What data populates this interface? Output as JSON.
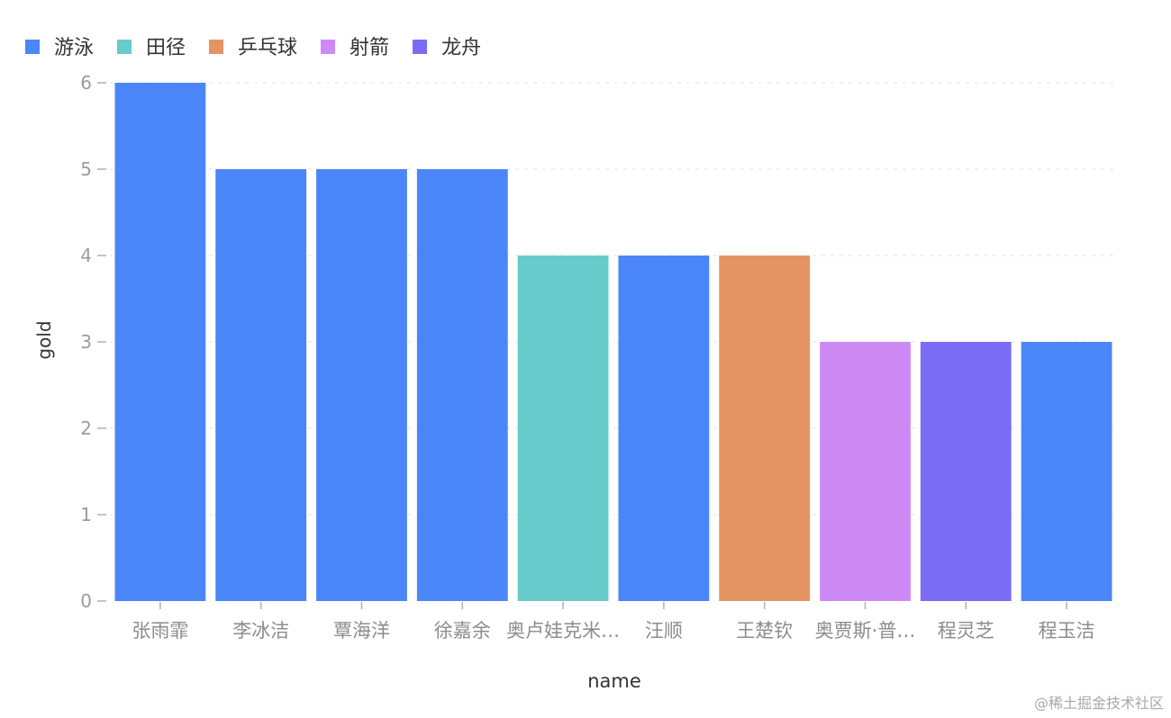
{
  "chart_data": {
    "type": "bar",
    "xlabel": "name",
    "ylabel": "gold",
    "ylim": [
      0,
      6
    ],
    "yticks": [
      0,
      1,
      2,
      3,
      4,
      5,
      6
    ],
    "grid": true,
    "legend_position": "top-left",
    "legend": [
      {
        "name": "游泳",
        "color": "#4a86f7"
      },
      {
        "name": "田径",
        "color": "#66cbca"
      },
      {
        "name": "乒乓球",
        "color": "#e39462"
      },
      {
        "name": "射箭",
        "color": "#cd8af5"
      },
      {
        "name": "龙舟",
        "color": "#7a6cf5"
      }
    ],
    "categories": [
      "张雨霏",
      "李冰洁",
      "覃海洋",
      "徐嘉余",
      "奥卢娃克米…",
      "汪顺",
      "王楚钦",
      "奥贾斯·普…",
      "程灵芝",
      "程玉洁"
    ],
    "values": [
      6,
      5,
      5,
      5,
      4,
      4,
      4,
      3,
      3,
      3
    ],
    "bar_sports": [
      "游泳",
      "游泳",
      "游泳",
      "游泳",
      "田径",
      "游泳",
      "乒乓球",
      "射箭",
      "龙舟",
      "游泳"
    ]
  },
  "watermark": "@稀土掘金技术社区"
}
